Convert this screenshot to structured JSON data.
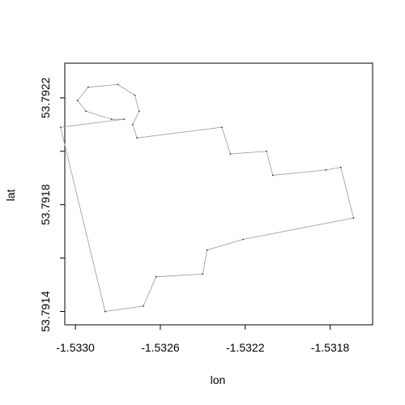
{
  "chart_data": {
    "type": "line",
    "title": "",
    "xlabel": "lon",
    "ylabel": "lat",
    "xlim": [
      -1.53305,
      -1.5316
    ],
    "ylim": [
      53.79135,
      53.79233
    ],
    "xticks": [
      -1.533,
      -1.5326,
      -1.5322,
      -1.5318
    ],
    "xtick_labels": [
      "-1.5330",
      "-1.5326",
      "-1.5322",
      "-1.5318"
    ],
    "yticks": [
      53.7914,
      53.7916,
      53.7918,
      53.792,
      53.7922
    ],
    "ytick_labels": [
      "53.7914",
      "",
      "53.7918",
      "",
      "53.7922"
    ],
    "grid": false,
    "line_color": "#999999",
    "point_color": "#333333",
    "series": [
      {
        "x": [
          -1.53286,
          -1.53268,
          -1.53262,
          -1.5324,
          -1.53238,
          -1.53221,
          -1.53169,
          -1.53175,
          -1.53182,
          -1.53207,
          -1.5321,
          -1.53227,
          -1.53231,
          -1.53271,
          -1.53273,
          -1.5327,
          -1.53272,
          -1.5328,
          -1.53294,
          -1.53299,
          -1.53295,
          -1.53283,
          -1.53277,
          -1.53307,
          -1.53286
        ],
        "y": [
          53.7914,
          53.79142,
          53.79153,
          53.79154,
          53.79163,
          53.79167,
          53.79175,
          53.79194,
          53.79193,
          53.79191,
          53.792,
          53.79199,
          53.79209,
          53.79205,
          53.7921,
          53.79215,
          53.79221,
          53.79225,
          53.79224,
          53.79219,
          53.79215,
          53.79212,
          53.79212,
          53.79209,
          53.7914
        ]
      }
    ]
  }
}
